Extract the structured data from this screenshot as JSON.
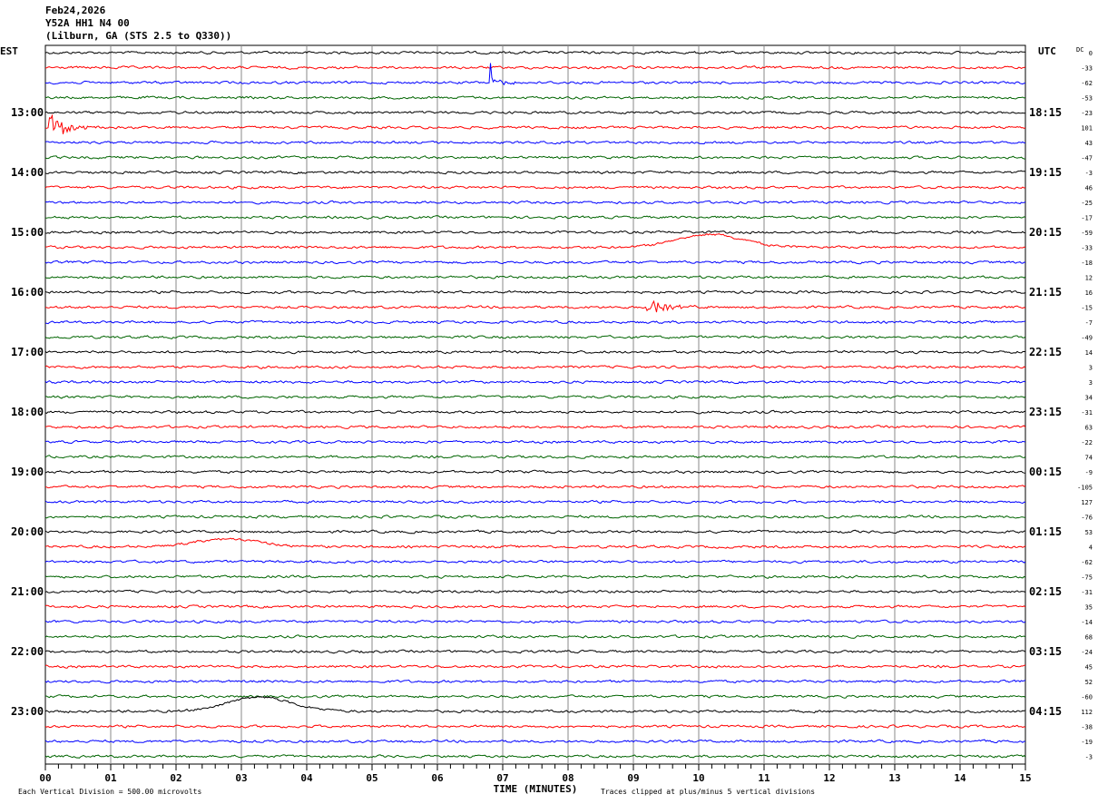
{
  "header": {
    "date": "Feb24,2026",
    "channel": "Y52A HH1 N4 00",
    "location": "(Lilburn, GA (STS 2.5 to Q330))"
  },
  "chart_data": {
    "type": "line",
    "subtype": "helicorder",
    "title": "Feb24,2026 Y52A HH1 N4 00 (Lilburn, GA (STS 2.5 to Q330))",
    "left_axis_title": "EST",
    "right_axis_title": "UTC",
    "dc_title": "DC",
    "xlabel": "TIME (MINUTES)",
    "xlim": [
      0,
      15
    ],
    "x_ticks": [
      "00",
      "01",
      "02",
      "03",
      "04",
      "05",
      "06",
      "07",
      "08",
      "09",
      "10",
      "11",
      "12",
      "13",
      "14",
      "15"
    ],
    "minutes_per_line": 15,
    "left_labels": [
      {
        "trace": 4,
        "text": "13:00"
      },
      {
        "trace": 8,
        "text": "14:00"
      },
      {
        "trace": 12,
        "text": "15:00"
      },
      {
        "trace": 16,
        "text": "16:00"
      },
      {
        "trace": 20,
        "text": "17:00"
      },
      {
        "trace": 24,
        "text": "18:00"
      },
      {
        "trace": 28,
        "text": "19:00"
      },
      {
        "trace": 32,
        "text": "20:00"
      },
      {
        "trace": 36,
        "text": "21:00"
      },
      {
        "trace": 40,
        "text": "22:00"
      },
      {
        "trace": 44,
        "text": "23:00"
      }
    ],
    "right_labels": [
      {
        "trace": 4,
        "text": "18:15"
      },
      {
        "trace": 8,
        "text": "19:15"
      },
      {
        "trace": 12,
        "text": "20:15"
      },
      {
        "trace": 16,
        "text": "21:15"
      },
      {
        "trace": 20,
        "text": "22:15"
      },
      {
        "trace": 24,
        "text": "23:15"
      },
      {
        "trace": 28,
        "text": "00:15"
      },
      {
        "trace": 32,
        "text": "01:15"
      },
      {
        "trace": 36,
        "text": "02:15"
      },
      {
        "trace": 40,
        "text": "03:15"
      },
      {
        "trace": 44,
        "text": "04:15"
      }
    ],
    "dc_offsets": [
      0,
      -33,
      -62,
      -53,
      -23,
      101,
      43,
      -47,
      -3,
      46,
      -25,
      -17,
      -59,
      -33,
      -18,
      12,
      16,
      -15,
      -7,
      -49,
      14,
      3,
      3,
      34,
      -31,
      63,
      -22,
      74,
      -9,
      -105,
      127,
      -76,
      53,
      4,
      -62,
      -75,
      -31,
      35,
      -14,
      68,
      -24,
      45,
      52,
      -60,
      112,
      -38,
      -19,
      -3
    ],
    "trace_colors": [
      "#000000",
      "#ff0000",
      "#0000ff",
      "#006400"
    ],
    "events": [
      {
        "trace": 2,
        "minute": 6.8,
        "type": "spike",
        "amplitude": 5
      },
      {
        "trace": 5,
        "minute": 0.05,
        "type": "burst",
        "amplitude": 1.6
      },
      {
        "trace": 13,
        "minute": 10.2,
        "type": "bump",
        "amplitude": 0.9
      },
      {
        "trace": 17,
        "minute": 9.2,
        "type": "burst",
        "amplitude": 1.0
      },
      {
        "trace": 33,
        "minute": 2.8,
        "type": "bump",
        "amplitude": 0.55
      },
      {
        "trace": 44,
        "minute": 3.3,
        "type": "bump",
        "amplitude": 1.0
      }
    ],
    "footer_left": "Each Vertical Division =  500.00 microvolts",
    "footer_right": "Traces clipped at plus/minus 5 vertical divisions"
  }
}
